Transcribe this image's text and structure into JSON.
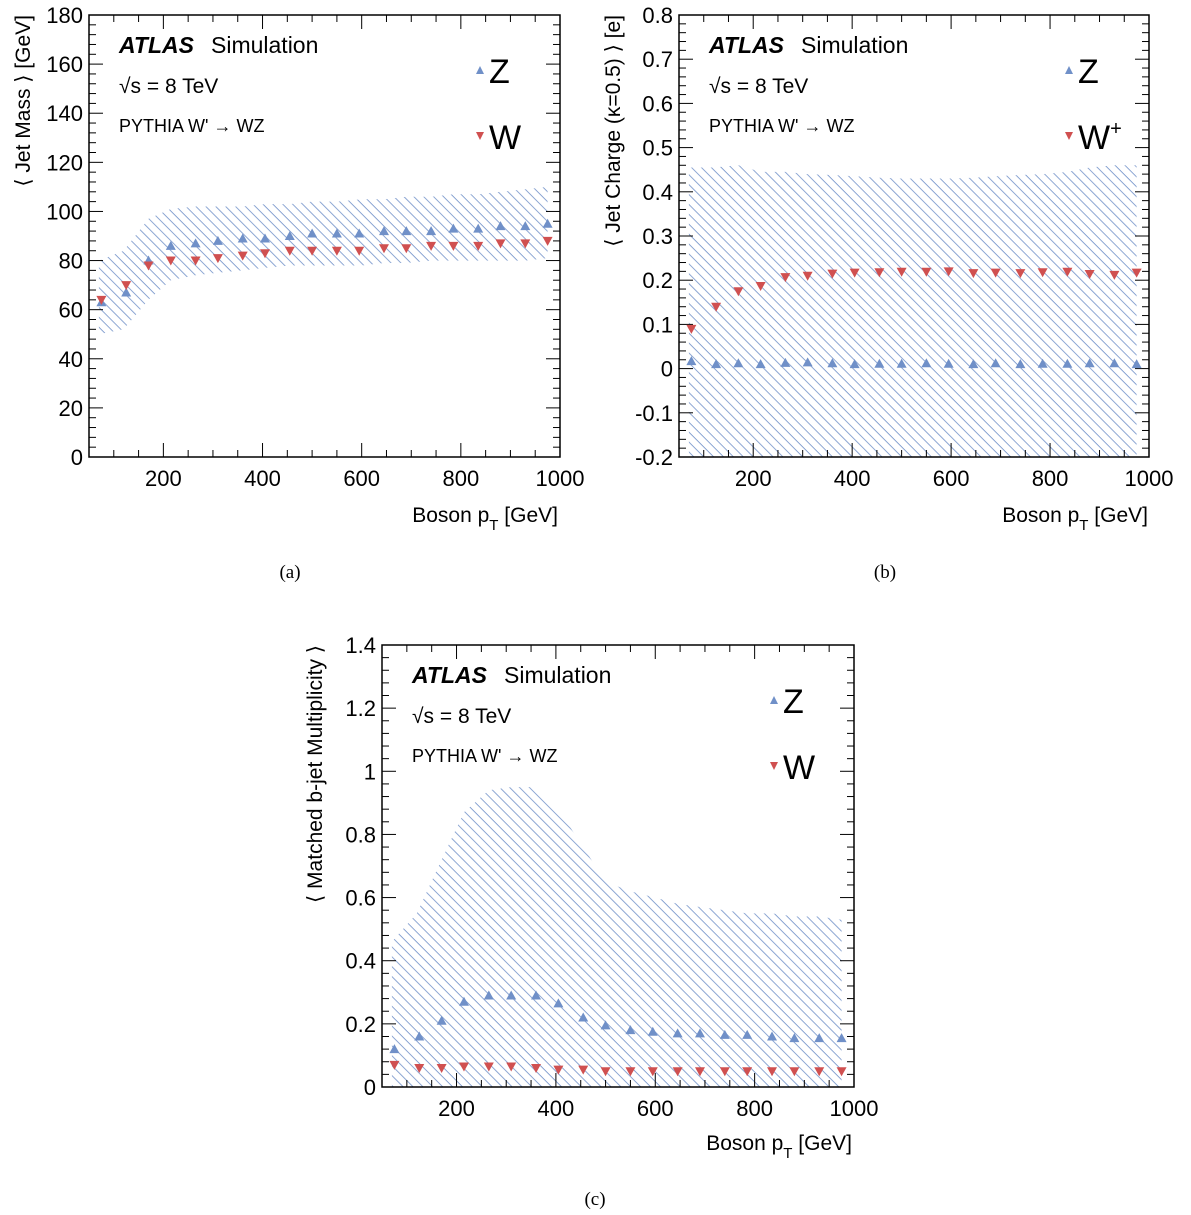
{
  "colors": {
    "z": "#7090c8",
    "w": "#d05050",
    "band": "#7090c8"
  },
  "chart_data": [
    {
      "type": "scatter",
      "caption": "(a)",
      "xlabel_main": "Boson p",
      "xlabel_sub": "T",
      "xlabel_unit": "[GeV]",
      "ylabel": "⟨ Jet Mass ⟩ [GeV]",
      "xlim": [
        50,
        1000
      ],
      "ylim": [
        0,
        180
      ],
      "xticks": [
        200,
        400,
        600,
        800,
        1000
      ],
      "yticks": [
        0,
        20,
        40,
        60,
        80,
        100,
        120,
        140,
        160,
        180
      ],
      "xtick_labels": [
        "200",
        "400",
        "600",
        "800",
        "1000"
      ],
      "ytick_labels": [
        "0",
        "20",
        "40",
        "60",
        "80",
        "100",
        "120",
        "140",
        "160",
        "180"
      ],
      "atlas": "ATLAS",
      "simulation": "Simulation",
      "energy": "√s = 8 TeV",
      "generator": "PYTHIA W' → WZ",
      "x": [
        75,
        125,
        170,
        215,
        265,
        310,
        360,
        405,
        455,
        500,
        550,
        595,
        645,
        690,
        740,
        785,
        835,
        880,
        930,
        975
      ],
      "series": [
        {
          "name": "Z",
          "marker": "triangle-up",
          "values": [
            63,
            67,
            80,
            86,
            87,
            88,
            89,
            89,
            90,
            91,
            91,
            91,
            92,
            92,
            92,
            93,
            93,
            94,
            94,
            95
          ]
        },
        {
          "name": "W",
          "marker": "triangle-down",
          "values": [
            64,
            70,
            78,
            80,
            80,
            81,
            82,
            83,
            84,
            84,
            84,
            84,
            85,
            85,
            86,
            86,
            86,
            87,
            87,
            88
          ]
        }
      ],
      "band": {
        "x": [
          70,
          120,
          170,
          215,
          265,
          310,
          360,
          405,
          455,
          500,
          550,
          600,
          645,
          690,
          740,
          785,
          835,
          880,
          930,
          975
        ],
        "upper": [
          80,
          84,
          97,
          101,
          102,
          102,
          102,
          103,
          103,
          104,
          104,
          105,
          105,
          106,
          106,
          107,
          107,
          108,
          109,
          110
        ],
        "lower": [
          50,
          52,
          64,
          72,
          74,
          75,
          76,
          77,
          78,
          78,
          78,
          78,
          79,
          79,
          80,
          80,
          80,
          80,
          80,
          81
        ]
      }
    },
    {
      "type": "scatter",
      "caption": "(b)",
      "xlabel_main": "Boson p",
      "xlabel_sub": "T",
      "xlabel_unit": "[GeV]",
      "ylabel": "⟨ Jet Charge (κ=0.5) ⟩ [e]",
      "xlim": [
        50,
        1000
      ],
      "ylim": [
        -0.2,
        0.8
      ],
      "xticks": [
        200,
        400,
        600,
        800,
        1000
      ],
      "yticks": [
        -0.2,
        -0.1,
        0,
        0.1,
        0.2,
        0.3,
        0.4,
        0.5,
        0.6,
        0.7,
        0.8
      ],
      "xtick_labels": [
        "200",
        "400",
        "600",
        "800",
        "1000"
      ],
      "ytick_labels": [
        "-0.2",
        "-0.1",
        "0",
        "0.1",
        "0.2",
        "0.3",
        "0.4",
        "0.5",
        "0.6",
        "0.7",
        "0.8"
      ],
      "atlas": "ATLAS",
      "simulation": "Simulation",
      "energy": "√s = 8 TeV",
      "generator": "PYTHIA W' → WZ",
      "x": [
        75,
        125,
        170,
        215,
        265,
        310,
        360,
        405,
        455,
        500,
        550,
        595,
        645,
        690,
        740,
        785,
        835,
        880,
        930,
        975
      ],
      "series": [
        {
          "name": "Z",
          "marker": "triangle-up",
          "values": [
            0.017,
            0.01,
            0.012,
            0.01,
            0.013,
            0.014,
            0.012,
            0.01,
            0.011,
            0.011,
            0.012,
            0.011,
            0.01,
            0.012,
            0.01,
            0.011,
            0.011,
            0.012,
            0.012,
            0.01
          ]
        },
        {
          "name": "W",
          "label_main": "W",
          "label_sup": "+",
          "marker": "triangle-down",
          "values": [
            0.09,
            0.14,
            0.175,
            0.187,
            0.207,
            0.21,
            0.215,
            0.217,
            0.218,
            0.219,
            0.219,
            0.22,
            0.216,
            0.217,
            0.216,
            0.218,
            0.219,
            0.214,
            0.212,
            0.217
          ]
        }
      ],
      "band": {
        "x": [
          70,
          120,
          170,
          215,
          265,
          310,
          360,
          405,
          455,
          500,
          550,
          600,
          645,
          690,
          740,
          785,
          835,
          880,
          930,
          975
        ],
        "upper": [
          0.455,
          0.455,
          0.46,
          0.445,
          0.445,
          0.44,
          0.438,
          0.435,
          0.432,
          0.43,
          0.43,
          0.43,
          0.432,
          0.435,
          0.438,
          0.44,
          0.445,
          0.455,
          0.46,
          0.46
        ],
        "lower": [
          -0.2,
          -0.2,
          -0.2,
          -0.2,
          -0.2,
          -0.2,
          -0.2,
          -0.2,
          -0.2,
          -0.2,
          -0.2,
          -0.2,
          -0.2,
          -0.2,
          -0.2,
          -0.2,
          -0.2,
          -0.2,
          -0.2,
          -0.2
        ]
      }
    },
    {
      "type": "scatter",
      "caption": "(c)",
      "xlabel_main": "Boson p",
      "xlabel_sub": "T",
      "xlabel_unit": "[GeV]",
      "ylabel": "⟨ Matched b-jet Multiplicity ⟩",
      "xlim": [
        50,
        1000
      ],
      "ylim": [
        0,
        1.4
      ],
      "xticks": [
        200,
        400,
        600,
        800,
        1000
      ],
      "yticks": [
        0,
        0.2,
        0.4,
        0.6,
        0.8,
        1,
        1.2,
        1.4
      ],
      "xtick_labels": [
        "200",
        "400",
        "600",
        "800",
        "1000"
      ],
      "ytick_labels": [
        "0",
        "0.2",
        "0.4",
        "0.6",
        "0.8",
        "1",
        "1.2",
        "1.4"
      ],
      "atlas": "ATLAS",
      "simulation": "Simulation",
      "energy": "√s = 8 TeV",
      "generator": "PYTHIA W' → WZ",
      "x": [
        75,
        125,
        170,
        215,
        265,
        310,
        360,
        405,
        455,
        500,
        550,
        595,
        645,
        690,
        740,
        785,
        835,
        880,
        930,
        975
      ],
      "series": [
        {
          "name": "Z",
          "marker": "triangle-up",
          "values": [
            0.12,
            0.16,
            0.21,
            0.27,
            0.29,
            0.29,
            0.29,
            0.265,
            0.22,
            0.195,
            0.18,
            0.175,
            0.17,
            0.17,
            0.165,
            0.165,
            0.16,
            0.155,
            0.155,
            0.155
          ]
        },
        {
          "name": "W",
          "marker": "triangle-down",
          "values": [
            0.07,
            0.06,
            0.06,
            0.065,
            0.065,
            0.065,
            0.06,
            0.055,
            0.055,
            0.05,
            0.05,
            0.05,
            0.05,
            0.05,
            0.05,
            0.05,
            0.05,
            0.05,
            0.05,
            0.05
          ]
        }
      ],
      "band": {
        "x": [
          70,
          120,
          170,
          215,
          265,
          310,
          360,
          405,
          455,
          500,
          550,
          600,
          645,
          690,
          740,
          785,
          835,
          880,
          930,
          975
        ],
        "upper": [
          0.46,
          0.55,
          0.72,
          0.87,
          0.94,
          0.95,
          0.95,
          0.88,
          0.76,
          0.65,
          0.62,
          0.6,
          0.58,
          0.57,
          0.56,
          0.55,
          0.55,
          0.54,
          0.54,
          0.53
        ],
        "lower": [
          0,
          0,
          0,
          0,
          0,
          0,
          0,
          0,
          0,
          0,
          0,
          0,
          0,
          0,
          0,
          0,
          0,
          0,
          0,
          0
        ]
      }
    }
  ]
}
